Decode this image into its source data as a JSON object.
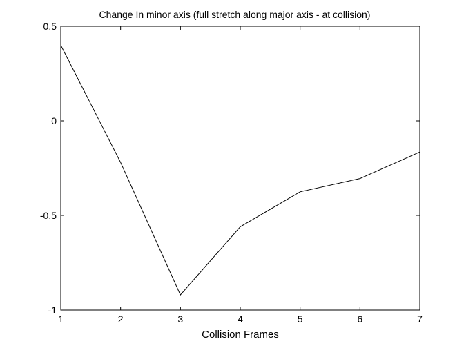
{
  "chart_data": {
    "type": "line",
    "title": "Change In minor axis (full stretch along major axis - at collision)",
    "xlabel": "Collision Frames",
    "ylabel": "",
    "xlim": [
      1,
      7
    ],
    "ylim": [
      -1,
      0.5
    ],
    "xticks": [
      1,
      2,
      3,
      4,
      5,
      6,
      7
    ],
    "xtick_labels": [
      "1",
      "2",
      "3",
      "4",
      "5",
      "6",
      "7"
    ],
    "yticks": [
      -1,
      -0.5,
      0,
      0.5
    ],
    "ytick_labels": [
      "-1",
      "-0.5",
      "0",
      "0.5"
    ],
    "grid": false,
    "legend": "none",
    "series": [
      {
        "x": [
          1,
          2,
          3,
          4,
          5,
          6,
          7
        ],
        "y": [
          0.4,
          -0.22,
          -0.92,
          -0.56,
          -0.375,
          -0.305,
          -0.165
        ],
        "color": "#000000"
      }
    ]
  }
}
